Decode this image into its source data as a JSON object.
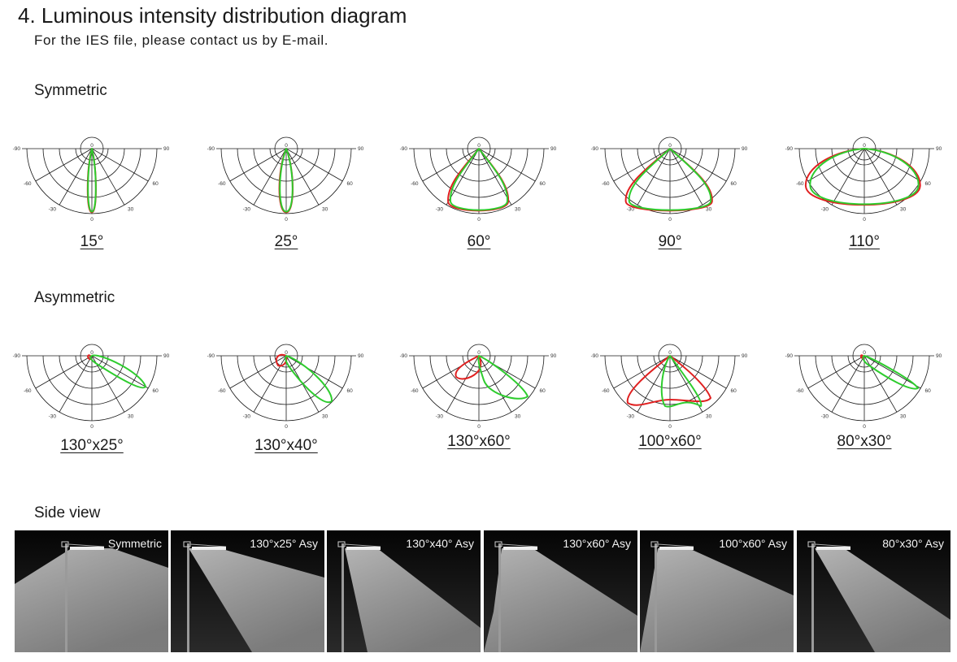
{
  "header": {
    "title": "4. Luminous intensity distribution diagram",
    "subtitle": "For the IES file, please contact us by E-mail."
  },
  "sections": {
    "symmetric": "Symmetric",
    "asymmetric": "Asymmetric",
    "side_view": "Side view"
  },
  "axis_labels": {
    "left90": "-90",
    "right90": "90",
    "left60": "-60",
    "right60": "60",
    "left30": "-30",
    "right30": "30",
    "bottom0": "0",
    "top0": "0"
  },
  "colors": {
    "red_curve": "#e02020",
    "green_curve": "#2ecc2e",
    "grid": "#1a1a1a"
  },
  "symmetric_diagrams": [
    {
      "label": "15°",
      "shape": "narrow",
      "width": 0.08,
      "depth": 0.98
    },
    {
      "label": "25°",
      "shape": "narrow",
      "width": 0.13,
      "depth": 0.98
    },
    {
      "label": "60°",
      "shape": "drop",
      "width": 0.46,
      "depth": 1.0
    },
    {
      "label": "90°",
      "shape": "drop",
      "width": 0.66,
      "depth": 1.0
    },
    {
      "label": "110°",
      "shape": "wide",
      "width": 0.85,
      "depth": 0.96
    }
  ],
  "asymmetric_diagrams": [
    {
      "label": "130°x25°"
    },
    {
      "label": "130°x40°"
    },
    {
      "label": "130°x60°"
    },
    {
      "label": "100°x60°"
    },
    {
      "label": "80°x30°"
    }
  ],
  "side_views": [
    {
      "label": "Symmetric"
    },
    {
      "label": "130°x25° Asy"
    },
    {
      "label": "130°x40° Asy"
    },
    {
      "label": "130°x60° Asy"
    },
    {
      "label": "100°x60° Asy"
    },
    {
      "label": "80°x30° Asy"
    }
  ]
}
